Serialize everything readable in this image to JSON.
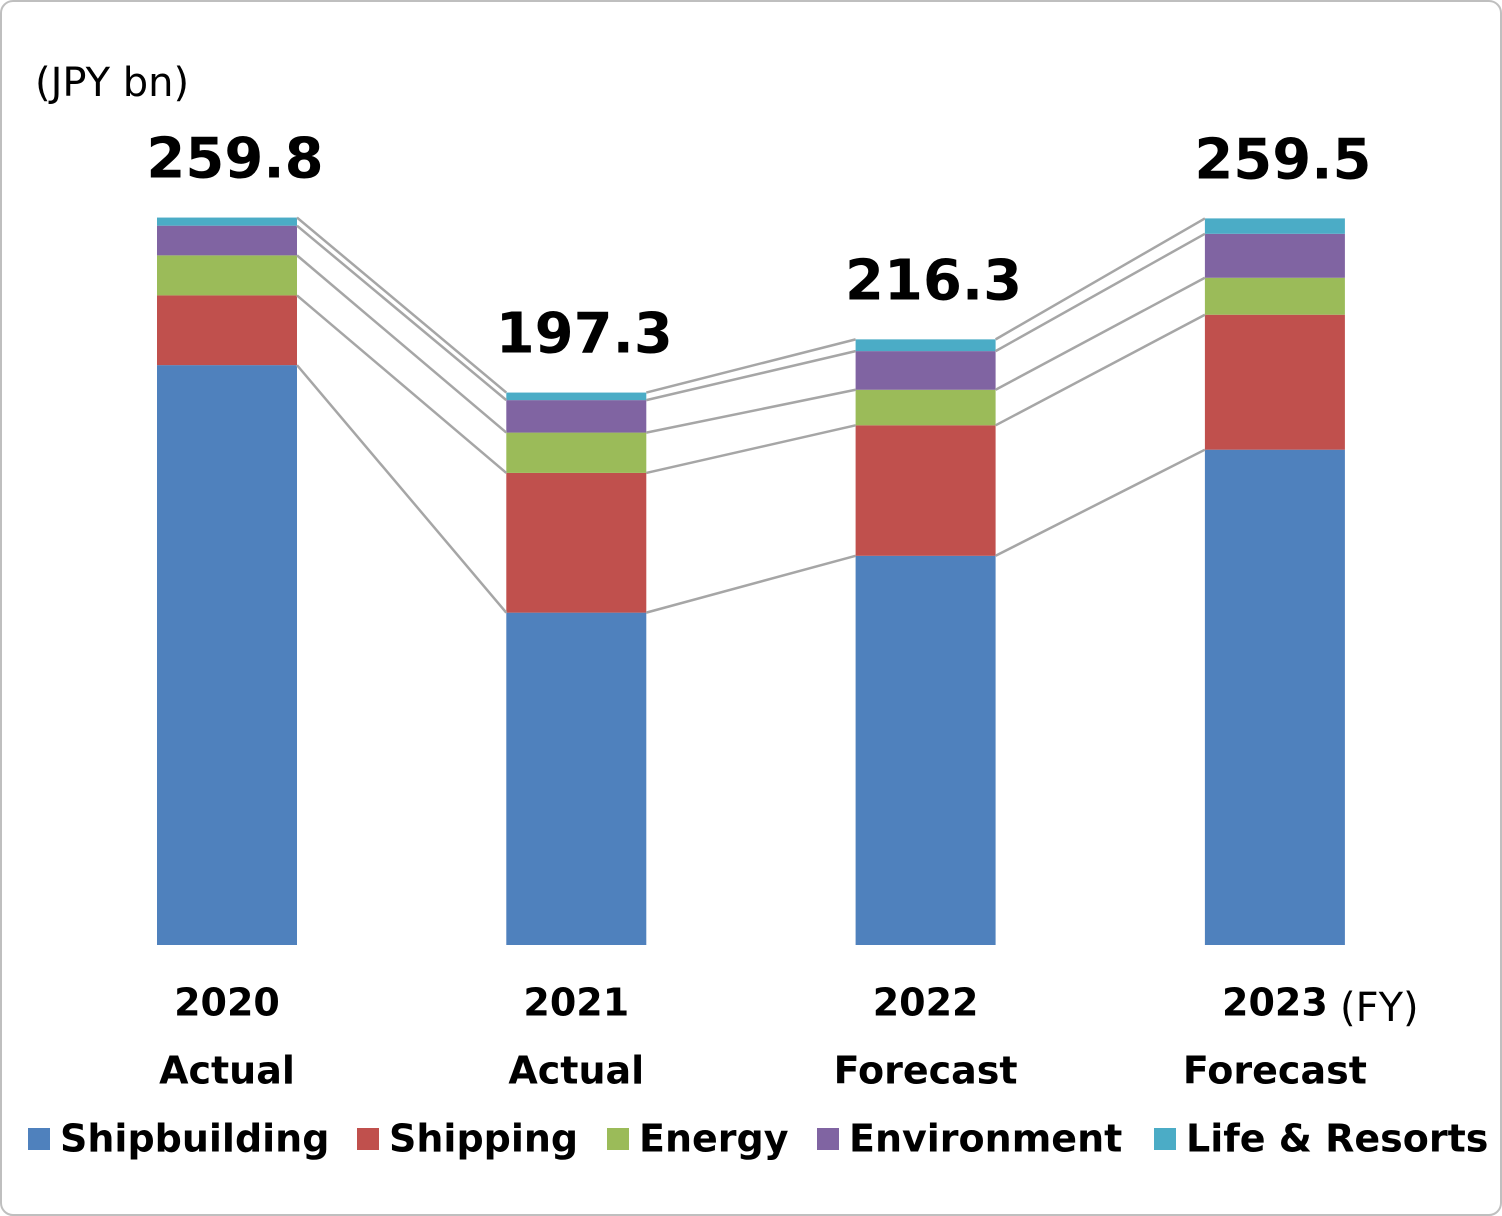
{
  "chart_data": {
    "type": "stacked_bar",
    "y_label": "(JPY bn)",
    "x_label": "(FY)",
    "categories": [
      "2020",
      "2021",
      "2022",
      "2023"
    ],
    "category_sublabels": [
      "Actual",
      "Actual",
      "Forecast",
      "Forecast"
    ],
    "totals": [
      259.8,
      197.3,
      216.3,
      259.5
    ],
    "ylim": [
      0,
      280
    ],
    "series": [
      {
        "name": "Shipbuilding",
        "color": "#4f81bd",
        "values": [
          207.1,
          118.7,
          139.0,
          176.9
        ]
      },
      {
        "name": "Shipping",
        "color": "#c0504d",
        "values": [
          24.9,
          49.9,
          46.6,
          48.2
        ]
      },
      {
        "name": "Energy",
        "color": "#9bbb59",
        "values": [
          14.3,
          14.4,
          12.7,
          13.2
        ]
      },
      {
        "name": "Environment",
        "color": "#8064a2",
        "values": [
          10.6,
          11.6,
          13.8,
          15.7
        ]
      },
      {
        "name": "Life & Resorts",
        "color": "#4bacc6",
        "values": [
          2.9,
          2.7,
          4.2,
          5.5
        ]
      }
    ]
  }
}
